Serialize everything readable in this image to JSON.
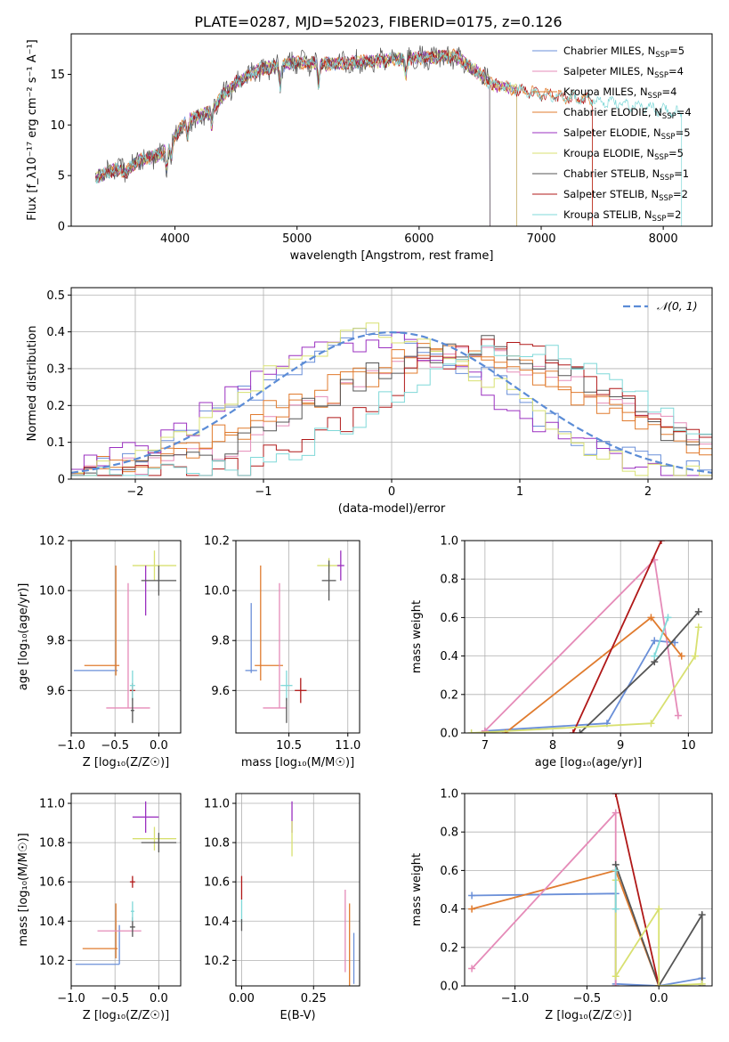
{
  "title": "PLATE=0287, MJD=52023, FIBERID=0175, z=0.126",
  "colors": {
    "Chabrier MILES": "#6a8fd8",
    "Salpeter MILES": "#e58bb8",
    "Kroupa MILES": "#e07b2e",
    "Chabrier ELODIE": "#e07b2e",
    "Salpeter ELODIE": "#9b30c0",
    "Kroupa ELODIE": "#d8e070",
    "Chabrier STELIB": "#555555",
    "Salpeter STELIB": "#b01818",
    "Kroupa STELIB": "#7fd8d8",
    "gauss": "#5b8cd6",
    "grid": "#b0b0b0"
  },
  "chart_data": [
    {
      "id": "spectrum",
      "type": "line",
      "xlabel": "wavelength [Angstrom, rest frame]",
      "ylabel": "Flux [f_λ10⁻¹⁷ erg cm⁻² s⁻¹ A⁻¹]",
      "xlim": [
        3150,
        8400
      ],
      "ylim": [
        0,
        19
      ],
      "xticks": [
        4000,
        5000,
        6000,
        7000,
        8000
      ],
      "yticks": [
        0,
        5,
        10,
        15
      ],
      "grid": false,
      "legend_position": "top-right",
      "legend": [
        "Chabrier MILES, N_SSP=5",
        "Salpeter MILES, N_SSP=4",
        "Kroupa MILES, N_SSP=4",
        "Chabrier ELODIE, N_SSP=4",
        "Salpeter ELODIE, N_SSP=5",
        "Kroupa ELODIE, N_SSP=5",
        "Chabrier STELIB, N_SSP=1",
        "Salpeter STELIB, N_SSP=2",
        "Kroupa STELIB, N_SSP=2"
      ],
      "continuum": {
        "x": [
          3350,
          3500,
          3600,
          3700,
          3800,
          3900,
          4000,
          4100,
          4200,
          4300,
          4400,
          4500,
          4700,
          5000,
          5200,
          5500,
          6000,
          6300,
          6500,
          6600,
          7000,
          7400,
          7600,
          8000,
          8150
        ],
        "y": [
          4.8,
          5.6,
          5.4,
          6.5,
          6.8,
          7.2,
          9.0,
          10.5,
          10.8,
          11.5,
          13.0,
          14.2,
          15.5,
          16.2,
          16.0,
          16.2,
          16.6,
          16.8,
          15.0,
          14.0,
          13.0,
          12.5,
          12.2,
          11.5,
          11.2
        ]
      },
      "series": [
        {
          "model": "Chabrier MILES",
          "xmax": 6580
        },
        {
          "model": "Salpeter MILES",
          "xmax": 6580
        },
        {
          "model": "Kroupa MILES",
          "xmax": 7420
        },
        {
          "model": "Chabrier ELODIE",
          "xmax": 6800
        },
        {
          "model": "Salpeter ELODIE",
          "xmax": 6800
        },
        {
          "model": "Kroupa ELODIE",
          "xmax": 6800
        },
        {
          "model": "Chabrier STELIB",
          "xmax": 6580
        },
        {
          "model": "Salpeter STELIB",
          "xmax": 7420
        },
        {
          "model": "Kroupa STELIB",
          "xmax": 8150
        }
      ]
    },
    {
      "id": "residuals",
      "type": "line",
      "xlabel": "(data-model)/error",
      "ylabel": "Normed distribution",
      "xlim": [
        -2.5,
        2.5
      ],
      "ylim": [
        0,
        0.52
      ],
      "xticks": [
        -2,
        -1,
        0,
        1,
        2
      ],
      "yticks": [
        0.0,
        0.1,
        0.2,
        0.3,
        0.4,
        0.5
      ],
      "grid": true,
      "legend_position": "top-right",
      "legend": [
        "𝒩(0, 1)"
      ],
      "bins": {
        "start": -2.5,
        "width": 0.1
      },
      "series": [
        {
          "model": "Chabrier MILES",
          "center": -0.1,
          "sigma": 1.0,
          "peak": 0.39
        },
        {
          "model": "Salpeter MILES",
          "center": 0.6,
          "sigma": 1.15,
          "peak": 0.34
        },
        {
          "model": "Kroupa MILES",
          "center": 0.5,
          "sigma": 1.2,
          "peak": 0.33
        },
        {
          "model": "Chabrier ELODIE",
          "center": 0.4,
          "sigma": 1.2,
          "peak": 0.34
        },
        {
          "model": "Salpeter ELODIE",
          "center": -0.2,
          "sigma": 1.0,
          "peak": 0.38
        },
        {
          "model": "Kroupa ELODIE",
          "center": -0.1,
          "sigma": 0.95,
          "peak": 0.41
        },
        {
          "model": "Chabrier STELIB",
          "center": 0.6,
          "sigma": 1.1,
          "peak": 0.36
        },
        {
          "model": "Salpeter STELIB",
          "center": 0.85,
          "sigma": 0.95,
          "peak": 0.36
        },
        {
          "model": "Kroupa STELIB",
          "center": 0.95,
          "sigma": 0.95,
          "peak": 0.36
        }
      ]
    },
    {
      "id": "age_vs_Z",
      "type": "scatter",
      "xlabel": "Z [log₁₀(Z/Z☉)]",
      "ylabel": "age  [log₁₀(age/yr)]",
      "xlim": [
        -1.0,
        0.25
      ],
      "ylim": [
        9.43,
        10.2
      ],
      "xticks": [
        -1.0,
        -0.5,
        0.0
      ],
      "xticklabels": [
        "−1.0",
        "−0.5",
        "0.0"
      ],
      "yticks": [
        9.6,
        9.8,
        10.0,
        10.2
      ],
      "yticklabels": [
        "9.6",
        "9.8",
        "10.0",
        "10.2"
      ],
      "grid": true,
      "points": [
        {
          "model": "Chabrier MILES",
          "x": -0.72,
          "xerr": 0.25,
          "y": 9.68,
          "yerr": 0.0
        },
        {
          "model": "Salpeter MILES",
          "x": -0.35,
          "xerr": 0.25,
          "y": 9.53,
          "yerr": 0.0
        },
        {
          "model": "Salpeter MILES",
          "x": -0.35,
          "xerr": 0.0,
          "y": 9.78,
          "yerr": 0.25
        },
        {
          "model": "Kroupa MILES",
          "x": -0.65,
          "xerr": 0.2,
          "y": 9.7,
          "yerr": 0.0
        },
        {
          "model": "Kroupa MILES",
          "x": -0.49,
          "xerr": 0.0,
          "y": 9.88,
          "yerr": 0.22
        },
        {
          "model": "Salpeter STELIB",
          "x": -0.3,
          "xerr": 0.03,
          "y": 9.6,
          "yerr": 0.03
        },
        {
          "model": "Kroupa STELIB",
          "x": -0.3,
          "xerr": 0.03,
          "y": 9.62,
          "yerr": 0.06
        },
        {
          "model": "Chabrier STELIB",
          "x": -0.3,
          "xerr": 0.02,
          "y": 9.52,
          "yerr": 0.05
        },
        {
          "model": "Kroupa ELODIE",
          "x": -0.05,
          "xerr": 0.25,
          "y": 10.1,
          "yerr": 0.06
        },
        {
          "model": "Salpeter ELODIE",
          "x": -0.15,
          "xerr": 0.0,
          "y": 10.0,
          "yerr": 0.1
        },
        {
          "model": "Chabrier STELIB",
          "x": 0.0,
          "xerr": 0.2,
          "y": 10.04,
          "yerr": 0.06
        }
      ]
    },
    {
      "id": "age_vs_mass",
      "type": "scatter",
      "xlabel": "mass [log₁₀(M/M☉)]",
      "ylabel": "",
      "xlim": [
        10.05,
        11.1
      ],
      "ylim": [
        9.43,
        10.2
      ],
      "xticks": [
        10.5,
        11.0
      ],
      "xticklabels": [
        "10.5",
        "11.0"
      ],
      "yticks": [
        9.6,
        9.8,
        10.0,
        10.2
      ],
      "yticklabels": [
        "9.6",
        "9.8",
        "10.0",
        "10.2"
      ],
      "grid": true,
      "points": [
        {
          "model": "Chabrier MILES",
          "x": 10.18,
          "xerr": 0.05,
          "y": 9.68,
          "yerr": 0.0
        },
        {
          "model": "Chabrier MILES",
          "x": 10.18,
          "xerr": 0.0,
          "y": 9.81,
          "yerr": 0.14
        },
        {
          "model": "Kroupa MILES",
          "x": 10.33,
          "xerr": 0.12,
          "y": 9.7,
          "yerr": 0.0
        },
        {
          "model": "Kroupa MILES",
          "x": 10.26,
          "xerr": 0.0,
          "y": 9.87,
          "yerr": 0.23
        },
        {
          "model": "Salpeter MILES",
          "x": 10.42,
          "xerr": 0.0,
          "y": 9.78,
          "yerr": 0.25
        },
        {
          "model": "Salpeter MILES",
          "x": 10.38,
          "xerr": 0.1,
          "y": 9.53,
          "yerr": 0.0
        },
        {
          "model": "Kroupa STELIB",
          "x": 10.48,
          "xerr": 0.05,
          "y": 9.62,
          "yerr": 0.06
        },
        {
          "model": "Chabrier STELIB",
          "x": 10.48,
          "xerr": 0.0,
          "y": 9.52,
          "yerr": 0.05
        },
        {
          "model": "Salpeter STELIB",
          "x": 10.6,
          "xerr": 0.05,
          "y": 9.6,
          "yerr": 0.05
        },
        {
          "model": "Kroupa ELODIE",
          "x": 10.84,
          "xerr": 0.1,
          "y": 10.1,
          "yerr": 0.03
        },
        {
          "model": "Chabrier STELIB",
          "x": 10.84,
          "xerr": 0.06,
          "y": 10.04,
          "yerr": 0.08
        },
        {
          "model": "Salpeter ELODIE",
          "x": 10.94,
          "xerr": 0.03,
          "y": 10.1,
          "yerr": 0.06
        }
      ]
    },
    {
      "id": "weight_vs_age",
      "type": "line",
      "xlabel": "age  [log₁₀(age/yr)]",
      "ylabel": "mass weight",
      "xlim": [
        6.7,
        10.35
      ],
      "ylim": [
        0,
        1.0
      ],
      "xticks": [
        7,
        8,
        9,
        10
      ],
      "xticklabels": [
        "7",
        "8",
        "9",
        "10"
      ],
      "yticks": [
        0.0,
        0.2,
        0.4,
        0.6,
        0.8,
        1.0
      ],
      "yticklabels": [
        "0.0",
        "0.2",
        "0.4",
        "0.6",
        "0.8",
        "1.0"
      ],
      "grid": true,
      "series": [
        {
          "model": "Chabrier MILES",
          "x": [
            7.0,
            8.8,
            9.5,
            9.8
          ],
          "y": [
            0.01,
            0.05,
            0.48,
            0.47
          ]
        },
        {
          "model": "Salpeter MILES",
          "x": [
            7.0,
            9.5,
            9.85
          ],
          "y": [
            0.01,
            0.9,
            0.09
          ]
        },
        {
          "model": "Kroupa MILES",
          "x": [
            7.3,
            9.45,
            9.9
          ],
          "y": [
            0.0,
            0.6,
            0.4
          ]
        },
        {
          "model": "Chabrier STELIB",
          "x": [
            8.4,
            9.5,
            10.15
          ],
          "y": [
            0.0,
            0.37,
            0.63
          ]
        },
        {
          "model": "Salpeter STELIB",
          "x": [
            8.3,
            9.6
          ],
          "y": [
            0.0,
            1.0
          ]
        },
        {
          "model": "Kroupa STELIB",
          "x": [
            9.5,
            9.7
          ],
          "y": [
            0.4,
            0.6
          ]
        },
        {
          "model": "Kroupa ELODIE",
          "x": [
            6.8,
            9.45,
            10.1,
            10.15
          ],
          "y": [
            0.0,
            0.05,
            0.4,
            0.55
          ]
        }
      ]
    },
    {
      "id": "mass_vs_Z",
      "type": "scatter",
      "xlabel": "Z [log₁₀(Z/Z☉)]",
      "ylabel": "mass [log₁₀(M/M☉)]",
      "xlim": [
        -1.0,
        0.25
      ],
      "ylim": [
        10.07,
        11.05
      ],
      "xticks": [
        -1.0,
        -0.5,
        0.0
      ],
      "xticklabels": [
        "−1.0",
        "−0.5",
        "0.0"
      ],
      "yticks": [
        10.2,
        10.4,
        10.6,
        10.8,
        11.0
      ],
      "yticklabels": [
        "10.2",
        "10.4",
        "10.6",
        "10.8",
        "11.0"
      ],
      "grid": true,
      "points": [
        {
          "model": "Chabrier MILES",
          "x": -0.7,
          "xerr": 0.25,
          "y": 10.18,
          "yerr": 0.0
        },
        {
          "model": "Chabrier MILES",
          "x": -0.45,
          "xerr": 0.0,
          "y": 10.28,
          "yerr": 0.1
        },
        {
          "model": "Kroupa MILES",
          "x": -0.67,
          "xerr": 0.2,
          "y": 10.26,
          "yerr": 0.0
        },
        {
          "model": "Kroupa MILES",
          "x": -0.49,
          "xerr": 0.0,
          "y": 10.35,
          "yerr": 0.14
        },
        {
          "model": "Salpeter MILES",
          "x": -0.45,
          "xerr": 0.25,
          "y": 10.35,
          "yerr": 0.0
        },
        {
          "model": "Chabrier STELIB",
          "x": -0.3,
          "xerr": 0.03,
          "y": 10.37,
          "yerr": 0.05
        },
        {
          "model": "Kroupa STELIB",
          "x": -0.3,
          "xerr": 0.02,
          "y": 10.45,
          "yerr": 0.05
        },
        {
          "model": "Salpeter STELIB",
          "x": -0.3,
          "xerr": 0.03,
          "y": 10.6,
          "yerr": 0.03
        },
        {
          "model": "Kroupa ELODIE",
          "x": -0.05,
          "xerr": 0.25,
          "y": 10.82,
          "yerr": 0.06
        },
        {
          "model": "Salpeter ELODIE",
          "x": -0.15,
          "xerr": 0.15,
          "y": 10.93,
          "yerr": 0.08
        },
        {
          "model": "Chabrier STELIB",
          "x": 0.0,
          "xerr": 0.2,
          "y": 10.8,
          "yerr": 0.05
        }
      ]
    },
    {
      "id": "mass_vs_EBV",
      "type": "scatter",
      "xlabel": "E(B-V)",
      "ylabel": "",
      "xlim": [
        -0.02,
        0.41
      ],
      "ylim": [
        10.07,
        11.05
      ],
      "xticks": [
        0.0,
        0.25
      ],
      "xticklabels": [
        "0.00",
        "0.25"
      ],
      "yticks": [
        10.2,
        10.4,
        10.6,
        10.8,
        11.0
      ],
      "yticklabels": [
        "10.2",
        "10.4",
        "10.6",
        "10.8",
        "11.0"
      ],
      "grid": true,
      "points": [
        {
          "model": "Salpeter STELIB",
          "x": 0.0,
          "xerr": 0.0,
          "y": 10.57,
          "yerr": 0.06
        },
        {
          "model": "Kroupa STELIB",
          "x": 0.0,
          "xerr": 0.0,
          "y": 10.45,
          "yerr": 0.06
        },
        {
          "model": "Chabrier STELIB",
          "x": 0.0,
          "xerr": 0.0,
          "y": 10.38,
          "yerr": 0.03
        },
        {
          "model": "Salpeter ELODIE",
          "x": 0.175,
          "xerr": 0.0,
          "y": 10.93,
          "yerr": 0.08
        },
        {
          "model": "Kroupa ELODIE",
          "x": 0.175,
          "xerr": 0.0,
          "y": 10.82,
          "yerr": 0.09
        },
        {
          "model": "Salpeter MILES",
          "x": 0.36,
          "xerr": 0.0,
          "y": 10.35,
          "yerr": 0.21
        },
        {
          "model": "Kroupa MILES",
          "x": 0.375,
          "xerr": 0.0,
          "y": 10.26,
          "yerr": 0.23
        },
        {
          "model": "Chabrier MILES",
          "x": 0.39,
          "xerr": 0.0,
          "y": 10.21,
          "yerr": 0.13
        }
      ]
    },
    {
      "id": "weight_vs_Z",
      "type": "line",
      "xlabel": "Z [log₁₀(Z/Z☉)]",
      "ylabel": "mass weight",
      "xlim": [
        -1.35,
        0.37
      ],
      "ylim": [
        0,
        1.0
      ],
      "xticks": [
        -1.0,
        -0.5,
        0.0
      ],
      "xticklabels": [
        "−1.0",
        "−0.5",
        "0.0"
      ],
      "yticks": [
        0.0,
        0.2,
        0.4,
        0.6,
        0.8,
        1.0
      ],
      "yticklabels": [
        "0.0",
        "0.2",
        "0.4",
        "0.6",
        "0.8",
        "1.0"
      ],
      "grid": true,
      "series": [
        {
          "model": "Chabrier MILES",
          "x": [
            -1.3,
            -0.3,
            -0.3,
            0.0,
            0.3
          ],
          "y": [
            0.47,
            0.48,
            0.01,
            0.0,
            0.04
          ]
        },
        {
          "model": "Kroupa MILES",
          "x": [
            -1.3,
            -0.3,
            0.0
          ],
          "y": [
            0.4,
            0.6,
            0.0
          ]
        },
        {
          "model": "Salpeter MILES",
          "x": [
            -1.3,
            -0.3,
            -0.3
          ],
          "y": [
            0.09,
            0.9,
            0.0
          ]
        },
        {
          "model": "Chabrier STELIB",
          "x": [
            -0.3,
            0.0,
            0.3,
            0.3
          ],
          "y": [
            0.63,
            0.0,
            0.37,
            0.0
          ]
        },
        {
          "model": "Salpeter STELIB",
          "x": [
            -0.3,
            0.0
          ],
          "y": [
            1.0,
            0.0
          ]
        },
        {
          "model": "Kroupa ELODIE",
          "x": [
            -0.3,
            -0.3,
            0.0,
            0.0,
            0.3
          ],
          "y": [
            0.55,
            0.05,
            0.4,
            0.0,
            0.01
          ]
        },
        {
          "model": "Kroupa STELIB",
          "x": [
            -0.3,
            -0.3
          ],
          "y": [
            0.6,
            0.4
          ]
        }
      ]
    }
  ]
}
